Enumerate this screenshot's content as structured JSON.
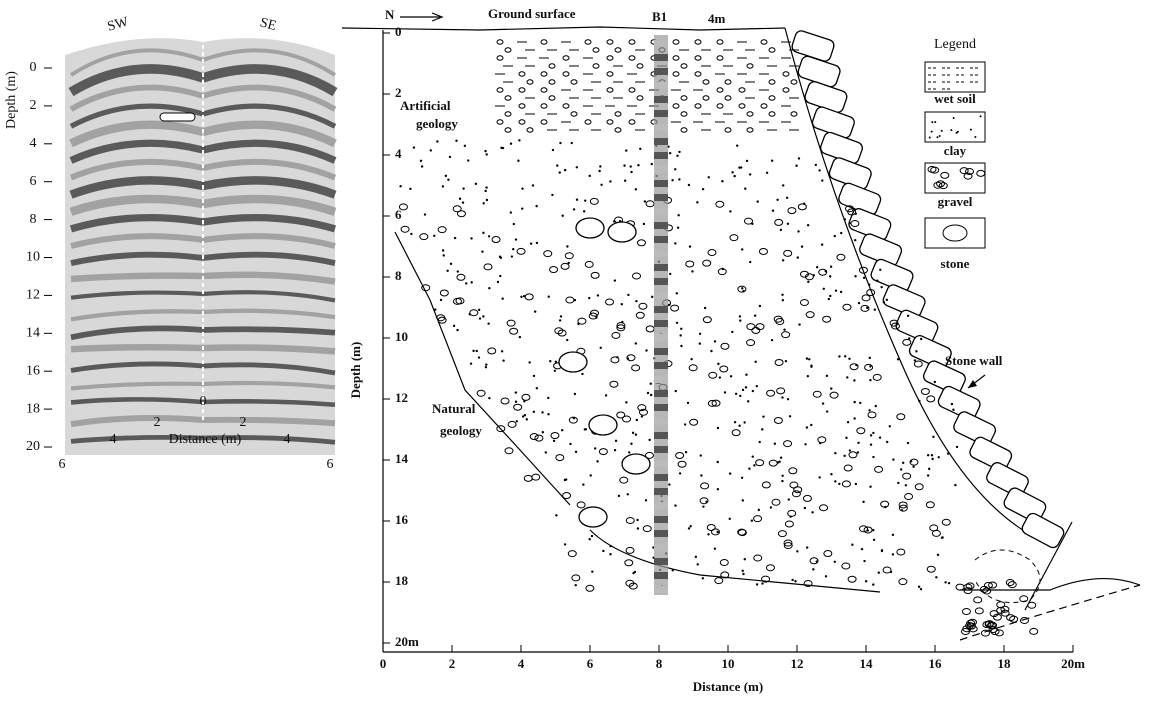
{
  "left_panel": {
    "left_label": "SW",
    "right_label": "SE",
    "y_label": "Depth (m)",
    "x_label": "Distance (m)",
    "depth_ticks": [
      "0",
      "2",
      "4",
      "6",
      "8",
      "10",
      "12",
      "14",
      "16",
      "18",
      "20"
    ],
    "distance_ticks": [
      "6",
      "4",
      "2",
      "0",
      "2",
      "4",
      "6"
    ]
  },
  "right_panel": {
    "north": "N",
    "ground": "Ground surface",
    "borehole": "B1",
    "top_mark": "4m",
    "artificial": "Artificial geology",
    "natural": "Natural geology",
    "wall": "Stone wall",
    "y_label": "Depth (m)",
    "x_label": "Distance (m)",
    "depth_ticks": [
      "0",
      "2",
      "4",
      "6",
      "8",
      "10",
      "12",
      "14",
      "16",
      "18",
      "20m"
    ],
    "distance_ticks": [
      "0",
      "2",
      "4",
      "6",
      "8",
      "10",
      "12",
      "14",
      "16",
      "18",
      "20m"
    ],
    "legend": {
      "title": "Legend",
      "items": [
        "wet soil",
        "clay",
        "gravel",
        "stone"
      ]
    }
  }
}
